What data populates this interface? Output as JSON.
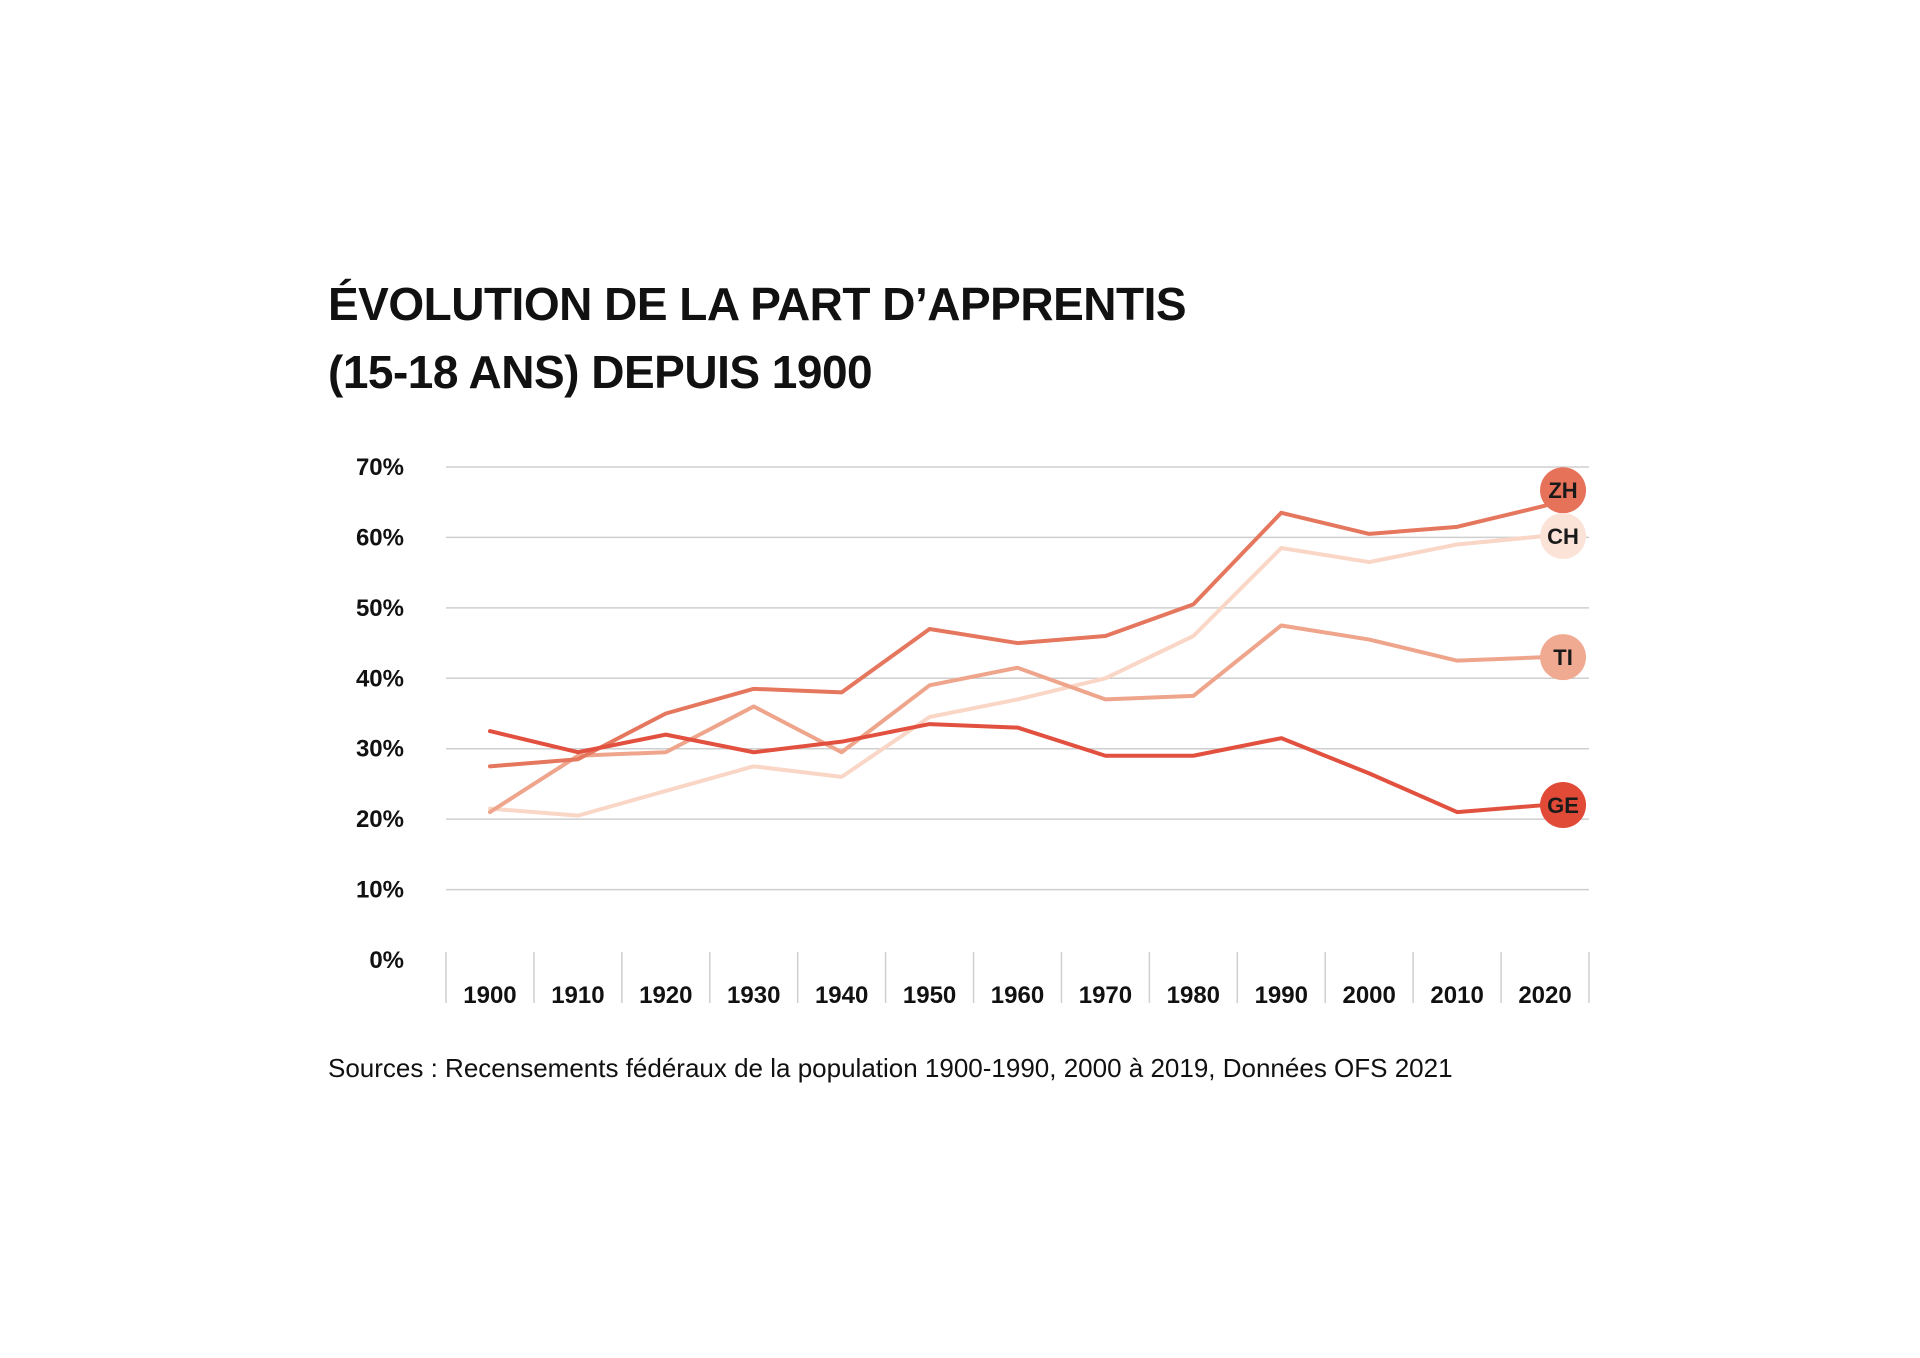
{
  "title_lines": [
    "ÉVOLUTION DE LA PART D’APPRENTIS",
    "(15-18 ANS) DEPUIS 1900"
  ],
  "source": "Sources : Recensements fédéraux de la population 1900-1990, 2000 à 2019, Données OFS 2021",
  "chart_data": {
    "type": "line",
    "title": "ÉVOLUTION DE LA PART D’APPRENTIS (15-18 ANS) DEPUIS 1900",
    "xlabel": "",
    "ylabel": "",
    "ylim": [
      0,
      70
    ],
    "yticks": [
      0,
      10,
      20,
      30,
      40,
      50,
      60,
      70
    ],
    "ytick_labels": [
      "0%",
      "10%",
      "20%",
      "30%",
      "40%",
      "50%",
      "60%",
      "70%"
    ],
    "categories": [
      "1900",
      "1910",
      "1920",
      "1930",
      "1940",
      "1950",
      "1960",
      "1970",
      "1980",
      "1990",
      "2000",
      "2010",
      "2020"
    ],
    "grid": true,
    "series": [
      {
        "name": "CH",
        "label": "CH",
        "color": "#f9d6c6",
        "label_color": "#fbe3d8",
        "values": [
          21.5,
          20.5,
          24,
          27.5,
          26,
          34.5,
          37,
          40,
          46,
          58.5,
          56.5,
          59,
          60.2
        ]
      },
      {
        "name": "TI",
        "label": "TI",
        "color": "#eea58c",
        "label_color": "#f1aa92",
        "values": [
          21,
          29,
          29.5,
          36,
          29.5,
          39,
          41.5,
          37,
          37.5,
          47.5,
          45.5,
          42.5,
          43
        ]
      },
      {
        "name": "ZH",
        "label": "ZH",
        "color": "#e5775e",
        "label_color": "#e7725a",
        "values": [
          27.5,
          28.5,
          35,
          38.5,
          38,
          47,
          45,
          46,
          50.5,
          63.5,
          60.5,
          61.5,
          64.5
        ]
      },
      {
        "name": "GE",
        "label": "GE",
        "color": "#e2513f",
        "label_color": "#e04a37",
        "values": [
          32.5,
          29.5,
          32,
          29.5,
          31,
          33.5,
          33,
          29,
          29,
          31.5,
          26.5,
          21,
          22
        ]
      }
    ],
    "end_labels": [
      {
        "series": "ZH",
        "label": "ZH",
        "at": 66.7
      },
      {
        "series": "CH",
        "label": "CH",
        "at": 60.2
      },
      {
        "series": "TI",
        "label": "TI",
        "at": 43
      },
      {
        "series": "GE",
        "label": "GE",
        "at": 22
      }
    ]
  }
}
